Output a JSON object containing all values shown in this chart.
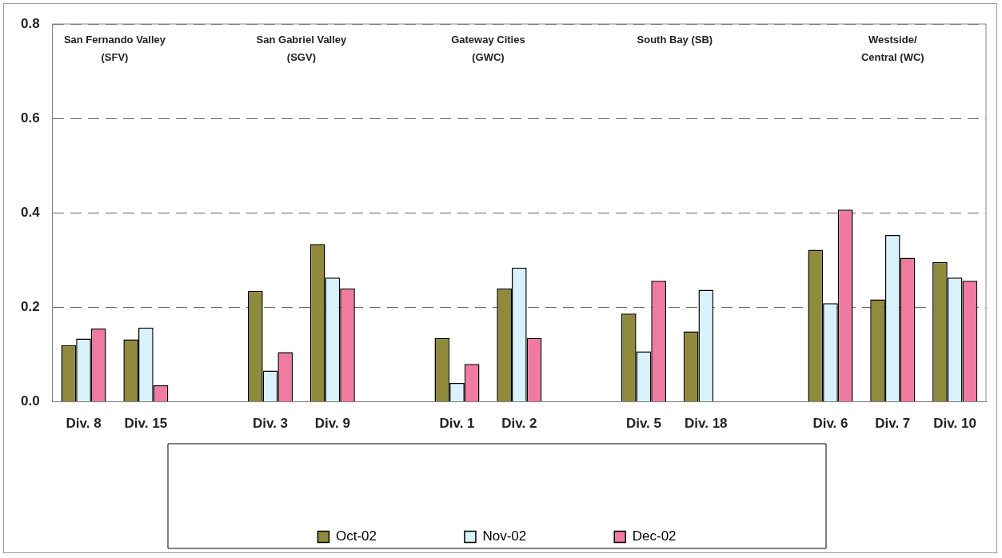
{
  "chart_data": {
    "type": "bar",
    "categories": [
      "Div. 8",
      "Div. 15",
      null,
      "Div. 3",
      "Div. 9",
      null,
      "Div. 1",
      "Div. 2",
      null,
      "Div. 5",
      "Div. 18",
      null,
      "Div. 6",
      "Div. 7",
      "Div. 10"
    ],
    "series": [
      {
        "name": "Oct-02",
        "color": "#8f8a3c",
        "values": [
          0.12,
          0.132,
          null,
          0.235,
          0.334,
          null,
          0.135,
          0.24,
          null,
          0.187,
          0.149,
          null,
          0.322,
          0.217,
          0.296
        ]
      },
      {
        "name": "Nov-02",
        "color": "#d9f1fb",
        "values": [
          0.134,
          0.157,
          null,
          0.066,
          0.263,
          null,
          0.04,
          0.284,
          null,
          0.107,
          0.237,
          null,
          0.209,
          0.353,
          0.263
        ]
      },
      {
        "name": "Dec-02",
        "color": "#f07aa0",
        "values": [
          0.155,
          0.035,
          null,
          0.105,
          0.24,
          null,
          0.08,
          0.135,
          null,
          0.256,
          null,
          null,
          0.407,
          0.305,
          0.256
        ]
      }
    ],
    "ylim": [
      0,
      0.8
    ],
    "yticks": [
      {
        "value": 0,
        "label": "0.0"
      },
      0.2,
      0.4,
      0.6,
      0.8
    ],
    "grid": "y",
    "legend": "bottom",
    "annotations": [
      "San Fernando Valley\n(SFV)",
      "San Gabriel Valley\n(SGV)",
      "Gateway Cities\n(GWC)",
      "South Bay (SB)",
      "Westside/\nCentral (WC)"
    ]
  }
}
